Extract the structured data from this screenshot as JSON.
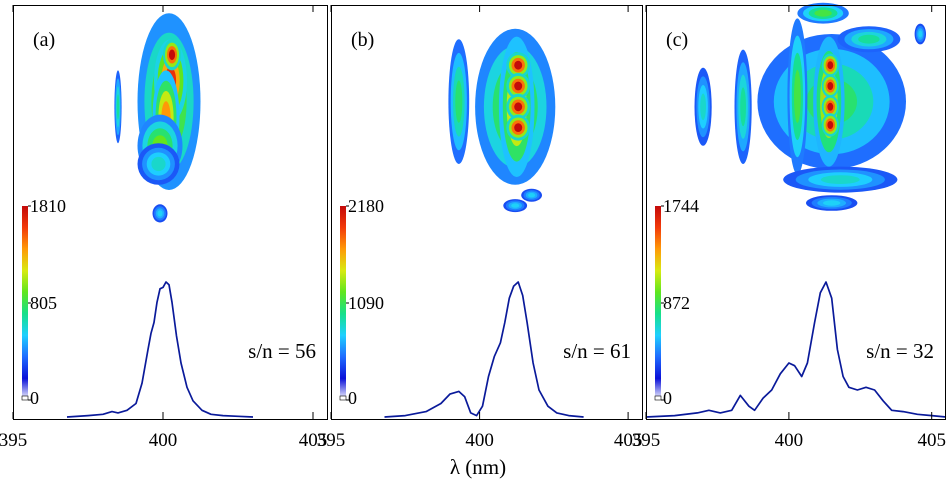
{
  "figure": {
    "xlabel": "λ (nm)"
  },
  "colormap": {
    "stops": [
      "#ffffff",
      "#0a10d8",
      "#1f6bff",
      "#1ed0ff",
      "#16e08a",
      "#5fe61e",
      "#d8ea10",
      "#ff9a08",
      "#f23a0a",
      "#c40a0a"
    ]
  },
  "chart_data": [
    {
      "type": "line",
      "panel_label": "(a)",
      "annotation": "s/n = 56",
      "xlim": [
        395,
        405.5
      ],
      "xticks": [
        395,
        400,
        405
      ],
      "xtick_labels": [
        "395",
        "400",
        "405"
      ],
      "colorbar": {
        "min": 0,
        "mid": 805,
        "max": 1810,
        "labels": [
          "1810",
          "805",
          "0"
        ]
      },
      "image_blobs": [
        {
          "x": 400.2,
          "y": 0.64,
          "rx": 1.05,
          "ry": 0.34,
          "intensity": 0.55
        },
        {
          "x": 400.25,
          "y": 0.72,
          "rx": 0.55,
          "ry": 0.16,
          "intensity": 0.9
        },
        {
          "x": 400.3,
          "y": 0.82,
          "rx": 0.3,
          "ry": 0.06,
          "intensity": 1.0
        },
        {
          "x": 400.1,
          "y": 0.58,
          "rx": 0.45,
          "ry": 0.18,
          "intensity": 0.75
        },
        {
          "x": 399.9,
          "y": 0.47,
          "rx": 0.75,
          "ry": 0.12,
          "intensity": 0.5
        },
        {
          "x": 399.85,
          "y": 0.4,
          "rx": 0.7,
          "ry": 0.08,
          "intensity": 0.3
        },
        {
          "x": 398.5,
          "y": 0.62,
          "rx": 0.12,
          "ry": 0.14,
          "intensity": 0.35
        },
        {
          "x": 399.9,
          "y": 0.21,
          "rx": 0.25,
          "ry": 0.035,
          "intensity": 0.25
        }
      ],
      "series": [
        {
          "x": [
            396.8,
            397.5,
            398.0,
            398.3,
            398.5,
            398.8,
            399.1,
            399.3,
            399.5,
            399.6,
            399.7,
            399.8,
            399.9,
            400.0,
            400.1,
            400.2,
            400.3,
            400.45,
            400.6,
            400.8,
            401.0,
            401.3,
            401.6,
            402.0,
            402.5,
            403.0
          ],
          "y": [
            0,
            0.01,
            0.02,
            0.04,
            0.03,
            0.05,
            0.1,
            0.25,
            0.5,
            0.62,
            0.7,
            0.85,
            0.95,
            0.96,
            1.0,
            0.98,
            0.85,
            0.6,
            0.4,
            0.22,
            0.12,
            0.05,
            0.02,
            0.01,
            0.005,
            0
          ]
        }
      ]
    },
    {
      "type": "line",
      "panel_label": "(b)",
      "annotation": "s/n = 61",
      "xlim": [
        395,
        405.5
      ],
      "xticks": [
        395,
        400,
        405
      ],
      "xtick_labels": [
        "395",
        "400",
        "405"
      ],
      "colorbar": {
        "min": 0,
        "mid": 1090,
        "max": 2180,
        "labels": [
          "2180",
          "1090",
          "0"
        ]
      },
      "image_blobs": [
        {
          "x": 401.2,
          "y": 0.62,
          "rx": 1.35,
          "ry": 0.3,
          "intensity": 0.5
        },
        {
          "x": 401.25,
          "y": 0.62,
          "rx": 0.6,
          "ry": 0.27,
          "intensity": 0.75
        },
        {
          "x": 401.3,
          "y": 0.78,
          "rx": 0.4,
          "ry": 0.05,
          "intensity": 1.0
        },
        {
          "x": 401.3,
          "y": 0.7,
          "rx": 0.4,
          "ry": 0.05,
          "intensity": 1.0
        },
        {
          "x": 401.3,
          "y": 0.62,
          "rx": 0.4,
          "ry": 0.05,
          "intensity": 1.0
        },
        {
          "x": 401.3,
          "y": 0.54,
          "rx": 0.4,
          "ry": 0.05,
          "intensity": 1.0
        },
        {
          "x": 399.3,
          "y": 0.64,
          "rx": 0.35,
          "ry": 0.24,
          "intensity": 0.4
        },
        {
          "x": 401.2,
          "y": 0.24,
          "rx": 0.4,
          "ry": 0.025,
          "intensity": 0.25
        },
        {
          "x": 401.75,
          "y": 0.28,
          "rx": 0.35,
          "ry": 0.025,
          "intensity": 0.25
        }
      ],
      "series": [
        {
          "x": [
            396.8,
            397.5,
            398.2,
            398.7,
            399.0,
            399.3,
            399.5,
            399.7,
            399.9,
            400.1,
            400.3,
            400.5,
            400.7,
            400.85,
            401.0,
            401.15,
            401.3,
            401.45,
            401.6,
            401.8,
            402.0,
            402.3,
            402.6,
            403.0,
            403.5
          ],
          "y": [
            0,
            0.01,
            0.04,
            0.1,
            0.17,
            0.19,
            0.15,
            0.03,
            0.01,
            0.08,
            0.3,
            0.45,
            0.55,
            0.7,
            0.88,
            0.97,
            1.0,
            0.9,
            0.7,
            0.4,
            0.2,
            0.08,
            0.03,
            0.01,
            0
          ]
        }
      ]
    },
    {
      "type": "line",
      "panel_label": "(c)",
      "annotation": "s/n = 32",
      "xlim": [
        395,
        405.5
      ],
      "xticks": [
        395,
        400,
        405
      ],
      "xtick_labels": [
        "395",
        "400",
        "405"
      ],
      "colorbar": {
        "min": 0,
        "mid": 872,
        "max": 1744,
        "labels": [
          "1744",
          "872",
          "0"
        ]
      },
      "image_blobs": [
        {
          "x": 401.5,
          "y": 0.64,
          "rx": 2.6,
          "ry": 0.26,
          "intensity": 0.4
        },
        {
          "x": 401.4,
          "y": 0.64,
          "rx": 0.55,
          "ry": 0.25,
          "intensity": 0.7
        },
        {
          "x": 401.45,
          "y": 0.78,
          "rx": 0.3,
          "ry": 0.045,
          "intensity": 1.0
        },
        {
          "x": 401.45,
          "y": 0.7,
          "rx": 0.3,
          "ry": 0.045,
          "intensity": 1.0
        },
        {
          "x": 401.45,
          "y": 0.62,
          "rx": 0.3,
          "ry": 0.045,
          "intensity": 1.0
        },
        {
          "x": 401.45,
          "y": 0.55,
          "rx": 0.3,
          "ry": 0.045,
          "intensity": 1.0
        },
        {
          "x": 400.3,
          "y": 0.66,
          "rx": 0.35,
          "ry": 0.3,
          "intensity": 0.45
        },
        {
          "x": 398.4,
          "y": 0.62,
          "rx": 0.3,
          "ry": 0.22,
          "intensity": 0.35
        },
        {
          "x": 397.0,
          "y": 0.62,
          "rx": 0.3,
          "ry": 0.15,
          "intensity": 0.3
        },
        {
          "x": 401.2,
          "y": 0.98,
          "rx": 0.9,
          "ry": 0.04,
          "intensity": 0.45
        },
        {
          "x": 402.8,
          "y": 0.88,
          "rx": 1.1,
          "ry": 0.05,
          "intensity": 0.35
        },
        {
          "x": 401.8,
          "y": 0.34,
          "rx": 2.0,
          "ry": 0.05,
          "intensity": 0.3
        },
        {
          "x": 401.5,
          "y": 0.25,
          "rx": 0.9,
          "ry": 0.03,
          "intensity": 0.25
        },
        {
          "x": 404.6,
          "y": 0.9,
          "rx": 0.2,
          "ry": 0.04,
          "intensity": 0.25
        }
      ],
      "series": [
        {
          "x": [
            395.0,
            396.0,
            396.8,
            397.2,
            397.6,
            398.0,
            398.3,
            398.6,
            398.8,
            399.1,
            399.4,
            399.7,
            400.0,
            400.2,
            400.45,
            400.65,
            400.9,
            401.1,
            401.3,
            401.5,
            401.7,
            401.9,
            402.1,
            402.4,
            402.7,
            403.0,
            403.3,
            403.6,
            404.0,
            404.5,
            405.0,
            405.5
          ],
          "y": [
            0,
            0.01,
            0.03,
            0.05,
            0.03,
            0.05,
            0.16,
            0.08,
            0.05,
            0.14,
            0.2,
            0.32,
            0.4,
            0.38,
            0.3,
            0.4,
            0.7,
            0.92,
            1.0,
            0.88,
            0.5,
            0.3,
            0.22,
            0.2,
            0.22,
            0.2,
            0.12,
            0.05,
            0.04,
            0.02,
            0.01,
            0
          ]
        }
      ]
    }
  ]
}
